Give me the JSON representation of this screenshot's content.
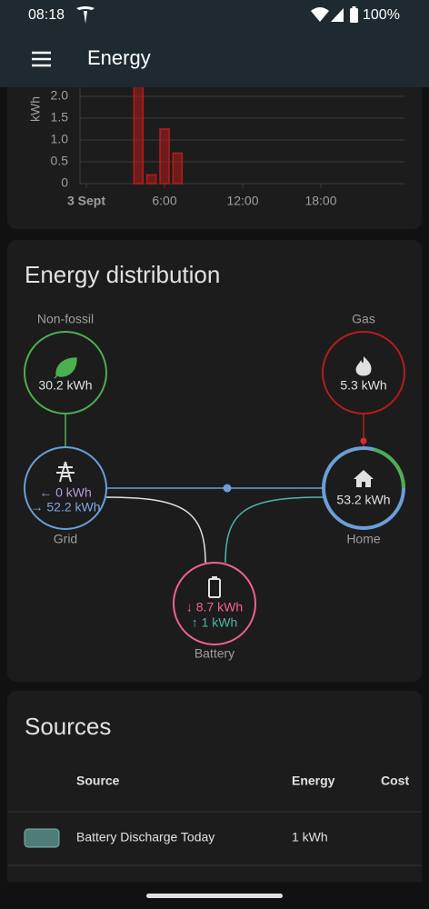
{
  "status_bar": {
    "time": "08:18",
    "battery": "100%"
  },
  "app_bar": {
    "title": "Energy"
  },
  "usage_chart": {
    "y_axis_label": "kWh",
    "ylim": [
      0,
      2.5
    ],
    "yticks": [
      0,
      0.5,
      {
        "value": 1,
        "label": "1.0"
      },
      1.5,
      {
        "value": 2,
        "label": "2.0"
      }
    ],
    "xlim": [
      0,
      24
    ],
    "xticks": [
      {
        "value": 0,
        "label": "3 Sept"
      },
      {
        "value": 6,
        "label": "6:00"
      },
      {
        "value": 12,
        "label": "12:00"
      },
      {
        "value": 18,
        "label": "18:00"
      }
    ],
    "x": [
      4,
      5,
      6,
      7
    ],
    "values": [
      2.5,
      0.2,
      1.25,
      0.7
    ],
    "color": "#b71c1c"
  },
  "distribution": {
    "title": "Energy distribution",
    "non_fossil": {
      "label": "Non-fossil",
      "value": "30.2 kWh"
    },
    "gas": {
      "label": "Gas",
      "value": "5.3 kWh"
    },
    "grid": {
      "label": "Grid",
      "from_grid": "← 0 kWh",
      "to_grid": "→ 52.2 kWh"
    },
    "home": {
      "label": "Home",
      "value": "53.2 kWh"
    },
    "battery": {
      "label": "Battery",
      "discharge": "↓ 8.7 kWh",
      "charge": "↑ 1 kWh"
    }
  },
  "sources": {
    "title": "Sources",
    "columns": [
      "Source",
      "Energy",
      "Cost"
    ],
    "rows": [
      [
        "Battery Discharge Today",
        "1 kWh"
      ]
    ]
  }
}
